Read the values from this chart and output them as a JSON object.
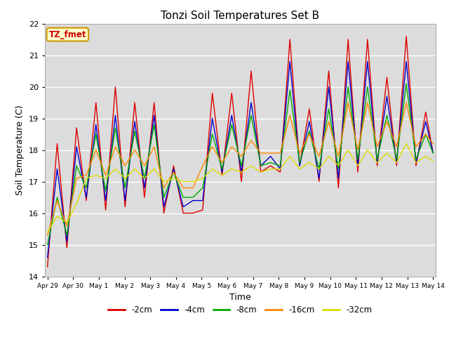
{
  "title": "Tonzi Soil Temperatures Set B",
  "xlabel": "Time",
  "ylabel": "Soil Temperature (C)",
  "annotation": "TZ_fmet",
  "annotation_color": "#cc0000",
  "annotation_bg": "#ffffcc",
  "annotation_border": "#cc9900",
  "ylim": [
    14.0,
    22.0
  ],
  "yticks": [
    14.0,
    15.0,
    16.0,
    17.0,
    18.0,
    19.0,
    20.0,
    21.0,
    22.0
  ],
  "series_colors": [
    "#dd0000",
    "#0000cc",
    "#00aa00",
    "#ff8800",
    "#dddd00"
  ],
  "series_labels": [
    "-2cm",
    "-4cm",
    "-8cm",
    "-16cm",
    "-32cm"
  ],
  "bg_color": "#dcdcdc",
  "grid_color": "#ffffff",
  "n_days": 15,
  "pts_per_day": 8,
  "xtick_labels": [
    "Apr 29",
    "Apr 30",
    "May 1",
    "May 2",
    "May 3",
    "May 4",
    "May 5",
    "May 6",
    "May 7",
    "May 8",
    "May 9",
    "May 10",
    "May 11",
    "May 12",
    "May 13",
    "May 14"
  ],
  "s2_peaks": [
    18.2,
    18.7,
    19.5,
    20.0,
    19.5,
    19.5,
    17.5,
    16.0,
    19.8,
    19.8,
    20.5,
    17.5,
    21.5,
    19.3,
    20.5,
    21.5,
    21.5,
    20.3,
    21.6,
    19.2
  ],
  "s2_valleys": [
    14.3,
    14.9,
    16.4,
    16.1,
    16.2,
    16.5,
    16.0,
    16.0,
    16.1,
    17.2,
    17.0,
    17.3,
    17.3,
    17.5,
    17.0,
    16.8,
    17.3,
    17.5,
    17.5,
    17.5
  ],
  "s4_peaks": [
    17.4,
    18.1,
    18.8,
    19.1,
    18.9,
    19.1,
    17.4,
    16.4,
    19.0,
    19.1,
    19.5,
    17.8,
    20.8,
    18.9,
    20.0,
    20.8,
    20.8,
    19.7,
    20.8,
    18.9
  ],
  "s4_valleys": [
    14.6,
    15.1,
    16.5,
    16.4,
    16.4,
    16.8,
    16.2,
    16.2,
    16.4,
    17.3,
    17.3,
    17.5,
    17.4,
    17.5,
    17.1,
    17.1,
    17.5,
    17.6,
    17.6,
    17.6
  ],
  "s8_peaks": [
    16.5,
    17.5,
    18.5,
    18.7,
    18.6,
    18.8,
    17.3,
    16.5,
    18.5,
    18.8,
    19.1,
    17.6,
    19.9,
    18.6,
    19.3,
    20.0,
    20.0,
    19.1,
    20.1,
    18.5
  ],
  "s8_valleys": [
    15.0,
    15.3,
    16.8,
    16.7,
    16.8,
    17.1,
    16.5,
    16.5,
    16.8,
    17.4,
    17.5,
    17.5,
    17.5,
    17.6,
    17.4,
    17.4,
    17.7,
    17.7,
    17.7,
    17.7
  ],
  "s16_peaks": [
    16.4,
    17.1,
    18.0,
    18.1,
    18.0,
    18.1,
    17.3,
    16.8,
    18.1,
    18.1,
    18.3,
    17.9,
    19.1,
    18.5,
    18.9,
    19.5,
    19.5,
    18.9,
    19.5,
    18.5
  ],
  "s16_valleys": [
    15.3,
    15.6,
    17.2,
    17.2,
    17.5,
    17.5,
    16.8,
    16.8,
    17.5,
    17.6,
    17.8,
    17.9,
    17.9,
    17.9,
    17.8,
    17.8,
    18.0,
    18.1,
    18.1,
    18.1
  ],
  "s32_peaks": [
    15.9,
    16.3,
    17.2,
    17.4,
    17.4,
    17.4,
    17.1,
    17.0,
    17.4,
    17.4,
    17.5,
    17.4,
    17.8,
    17.6,
    17.8,
    18.0,
    18.0,
    17.9,
    18.2,
    17.8
  ],
  "s32_valleys": [
    15.4,
    15.7,
    17.1,
    17.1,
    17.1,
    17.1,
    17.0,
    17.0,
    17.1,
    17.2,
    17.3,
    17.3,
    17.4,
    17.4,
    17.4,
    17.5,
    17.5,
    17.6,
    17.6,
    17.6
  ]
}
